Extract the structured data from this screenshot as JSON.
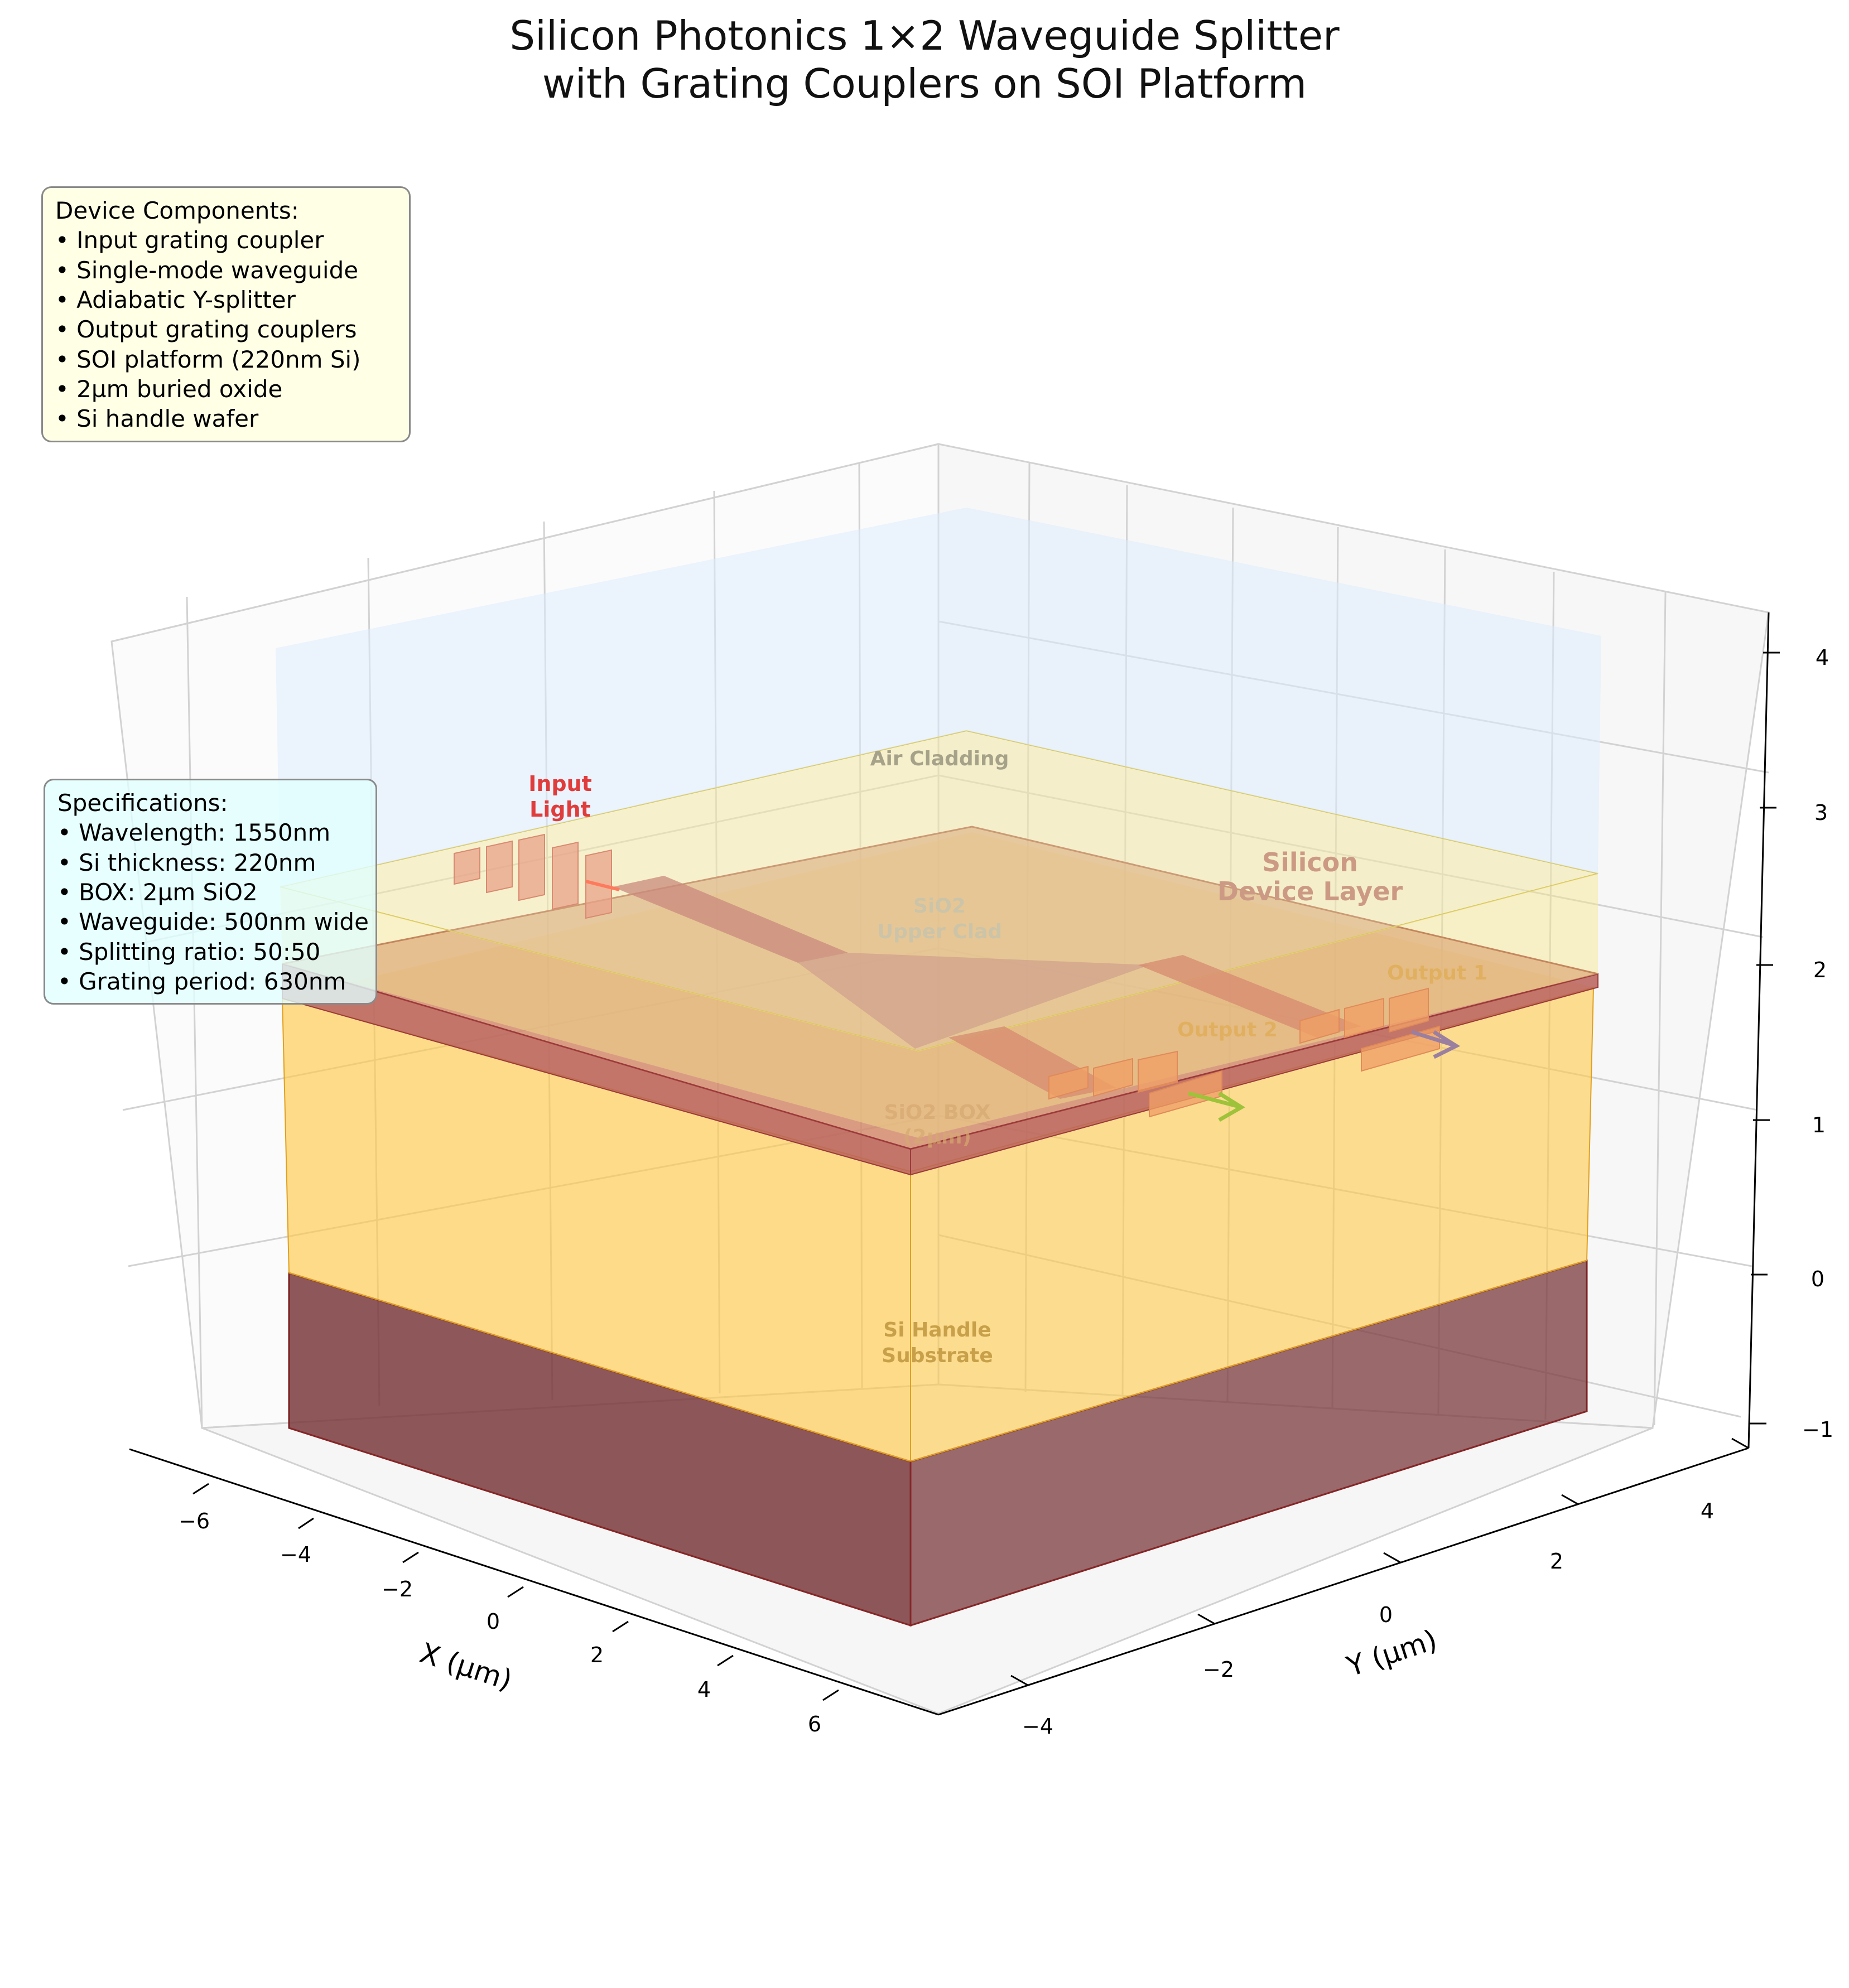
{
  "figure": {
    "title_line1": "Silicon Photonics 1×2 Waveguide Splitter",
    "title_line2": "with Grating Couplers on SOI Platform"
  },
  "legend_components": {
    "heading": "Device Components:",
    "items": [
      "• Input grating coupler",
      "• Single-mode waveguide",
      "• Adiabatic Y-splitter",
      "• Output grating couplers",
      "• SOI platform (220nm Si)",
      "• 2µm buried oxide",
      "• Si handle wafer"
    ]
  },
  "legend_specs": {
    "heading": "Specifications:",
    "items": [
      "• Wavelength: 1550nm",
      "• Si thickness: 220nm",
      "• BOX: 2µm SiO2",
      "• Waveguide: 500nm wide",
      "• Splitting ratio: 50:50",
      "• Grating period: 630nm"
    ]
  },
  "labels": {
    "input_line1": "Input",
    "input_line2": "Light",
    "air_cladding": "Air Cladding",
    "sio2_line1": "SiO2",
    "sio2_line2": "Upper Clad",
    "device_line1": "Silicon",
    "device_line2": "Device Layer",
    "output1": "Output 1",
    "output2": "Output 2",
    "box_line1": "SiO2 BOX",
    "box_line2": "(2µm)",
    "handle_line1": "Si Handle",
    "handle_line2": "Substrate"
  },
  "axes": {
    "x_label": "X (µm)",
    "y_label": "Y (µm)",
    "x_ticks": [
      "−6",
      "−4",
      "−2",
      "0",
      "2",
      "4",
      "6"
    ],
    "y_ticks": [
      "−4",
      "−2",
      "0",
      "2",
      "4"
    ],
    "z_ticks": [
      "−1",
      "0",
      "1",
      "2",
      "3",
      "4"
    ]
  },
  "colors": {
    "air": "#dcebff",
    "sio2_clad": "#f3e9a6",
    "device": "#c97b6b",
    "box": "#ffc94a",
    "handle": "#7a3a3c",
    "coupler": "#e8a18a",
    "input_text": "#e03c3c",
    "arrow_out1": "#9b7fa0",
    "arrow_out2": "#9ec23a"
  }
}
